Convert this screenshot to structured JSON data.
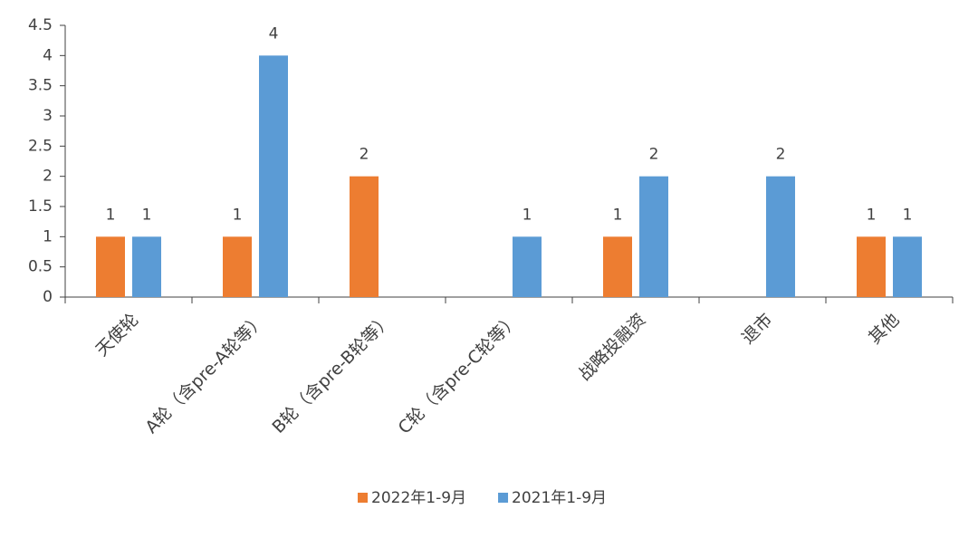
{
  "chart_data": {
    "type": "bar",
    "categories": [
      "天使轮",
      "A轮（含pre-A轮等）",
      "B轮（含pre-B轮等）",
      "C轮（含pre-C轮等）",
      "战略投融资",
      "退市",
      "其他"
    ],
    "series": [
      {
        "name": "2022年1-9月",
        "color": "#ed7d31",
        "values": [
          1,
          1,
          2,
          null,
          1,
          null,
          1
        ]
      },
      {
        "name": "2021年1-9月",
        "color": "#5b9bd5",
        "values": [
          1,
          4,
          null,
          1,
          2,
          2,
          1
        ]
      }
    ],
    "ylim": [
      0,
      4.5
    ],
    "yticks": [
      0,
      0.5,
      1,
      1.5,
      2,
      2.5,
      3,
      3.5,
      4,
      4.5
    ]
  }
}
